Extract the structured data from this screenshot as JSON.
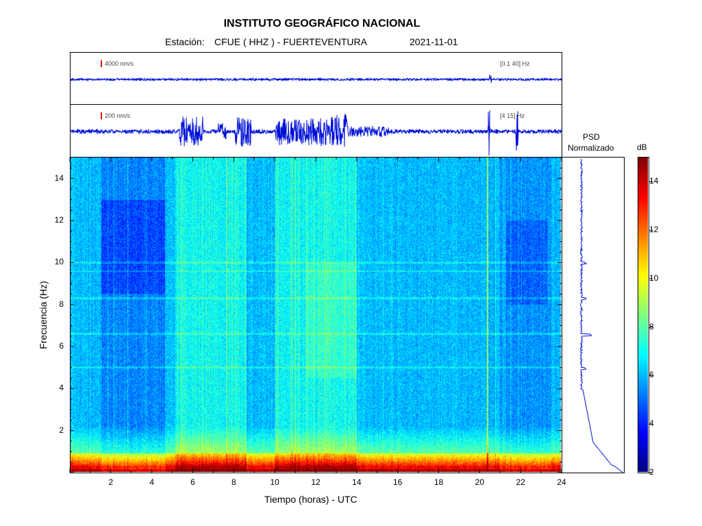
{
  "header": {
    "institution": "INSTITUTO GEOGRÁFICO NACIONAL",
    "station_label": "Estación:",
    "station": "CFUE ( HHZ ) - FUERTEVENTURA",
    "date": "2021-11-01"
  },
  "traces": [
    {
      "scale": "4000 nm/s",
      "band": "[0.1 40] Hz"
    },
    {
      "scale": "200 nm/s",
      "band": "[4 15] Hz"
    }
  ],
  "psd": {
    "title_line1": "PSD",
    "title_line2": "Normalizado"
  },
  "colorbar": {
    "unit": "dB",
    "ticks": [
      "2",
      "4",
      "6",
      "8",
      "10",
      "12",
      "14"
    ],
    "range": [
      2,
      15
    ]
  },
  "chart_data": {
    "type": "heatmap",
    "title": "INSTITUTO GEOGRÁFICO NACIONAL",
    "xlabel": "Tiempo (horas) - UTC",
    "ylabel": "Frecuencia  (Hz)",
    "xlim": [
      0,
      24
    ],
    "ylim": [
      0,
      15
    ],
    "x_ticks": [
      "2",
      "4",
      "6",
      "8",
      "10",
      "12",
      "14",
      "16",
      "18",
      "20",
      "22",
      "24"
    ],
    "y_ticks": [
      "2",
      "4",
      "6",
      "8",
      "10",
      "12",
      "14"
    ],
    "colorscale": "jet",
    "psd_peaks_hz": [
      10.0,
      8.3,
      6.6,
      5.0
    ],
    "noisy_intervals_hours": [
      [
        5.2,
        8.5
      ],
      [
        10.0,
        14.0
      ]
    ],
    "quiet_intervals_hours": [
      [
        1.5,
        5.0
      ],
      [
        21.0,
        23.5
      ]
    ]
  }
}
